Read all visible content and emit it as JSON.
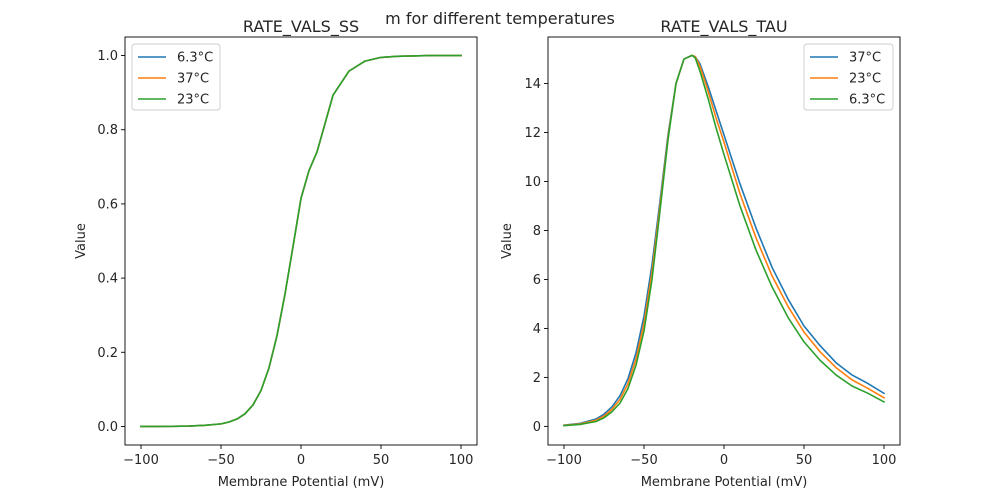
{
  "figure": {
    "suptitle": "m for different temperatures"
  },
  "chart_data": [
    {
      "type": "line",
      "title": "RATE_VALS_SS",
      "xlabel": "Membrane Potential (mV)",
      "ylabel": "Value",
      "xlim": [
        -110,
        110
      ],
      "ylim": [
        -0.05,
        1.05
      ],
      "xticks": [
        -100,
        -50,
        0,
        50,
        100
      ],
      "xtick_labels": [
        "−100",
        "−50",
        "0",
        "50",
        "100"
      ],
      "yticks": [
        0.0,
        0.2,
        0.4,
        0.6,
        0.8,
        1.0
      ],
      "ytick_labels": [
        "0.0",
        "0.2",
        "0.4",
        "0.6",
        "0.8",
        "1.0"
      ],
      "grid": false,
      "legend_position": "upper-left",
      "x": [
        -100,
        -90,
        -80,
        -70,
        -60,
        -50,
        -45,
        -40,
        -35,
        -30,
        -25,
        -20,
        -15,
        -10,
        -5,
        0,
        5,
        10,
        20,
        30,
        40,
        50,
        60,
        70,
        80,
        90,
        100
      ],
      "series": [
        {
          "name": "6.3°C",
          "color": "#1f77b4",
          "values": [
            0.0,
            0.0,
            0.0005,
            0.001,
            0.003,
            0.007,
            0.012,
            0.02,
            0.034,
            0.058,
            0.097,
            0.158,
            0.245,
            0.357,
            0.485,
            0.615,
            0.69,
            0.74,
            0.893,
            0.958,
            0.985,
            0.995,
            0.998,
            0.999,
            1.0,
            1.0,
            1.0
          ]
        },
        {
          "name": "37°C",
          "color": "#ff7f0e",
          "values": [
            0.0,
            0.0,
            0.0005,
            0.001,
            0.003,
            0.007,
            0.012,
            0.02,
            0.034,
            0.058,
            0.097,
            0.158,
            0.245,
            0.357,
            0.485,
            0.615,
            0.69,
            0.74,
            0.893,
            0.958,
            0.985,
            0.995,
            0.998,
            0.999,
            1.0,
            1.0,
            1.0
          ]
        },
        {
          "name": "23°C",
          "color": "#2ca02c",
          "values": [
            0.0,
            0.0,
            0.0005,
            0.001,
            0.003,
            0.007,
            0.012,
            0.02,
            0.034,
            0.058,
            0.097,
            0.158,
            0.245,
            0.357,
            0.485,
            0.615,
            0.69,
            0.74,
            0.893,
            0.958,
            0.985,
            0.995,
            0.998,
            0.999,
            1.0,
            1.0,
            1.0
          ]
        }
      ]
    },
    {
      "type": "line",
      "title": "RATE_VALS_TAU",
      "xlabel": "Membrane Potential (mV)",
      "ylabel": "Value",
      "xlim": [
        -110,
        110
      ],
      "ylim": [
        -0.76,
        15.9
      ],
      "xticks": [
        -100,
        -50,
        0,
        50,
        100
      ],
      "xtick_labels": [
        "−100",
        "−50",
        "0",
        "50",
        "100"
      ],
      "yticks": [
        0,
        2,
        4,
        6,
        8,
        10,
        12,
        14
      ],
      "ytick_labels": [
        "0",
        "2",
        "4",
        "6",
        "8",
        "10",
        "12",
        "14"
      ],
      "grid": false,
      "legend_position": "upper-right",
      "x": [
        -100,
        -90,
        -80,
        -75,
        -70,
        -65,
        -60,
        -55,
        -50,
        -45,
        -40,
        -35,
        -30,
        -25,
        -20,
        -18,
        -15,
        -10,
        -5,
        0,
        10,
        20,
        30,
        40,
        50,
        60,
        70,
        80,
        90,
        100
      ],
      "series": [
        {
          "name": "37°C",
          "color": "#1f77b4",
          "values": [
            0.05,
            0.12,
            0.3,
            0.5,
            0.8,
            1.25,
            1.95,
            3.0,
            4.5,
            6.6,
            9.2,
            11.9,
            14.0,
            15.0,
            15.15,
            15.1,
            14.8,
            13.9,
            12.9,
            11.9,
            9.9,
            8.1,
            6.5,
            5.2,
            4.1,
            3.3,
            2.6,
            2.1,
            1.75,
            1.35
          ]
        },
        {
          "name": "23°C",
          "color": "#ff7f0e",
          "values": [
            0.04,
            0.1,
            0.25,
            0.42,
            0.7,
            1.1,
            1.75,
            2.75,
            4.2,
            6.3,
            9.0,
            11.8,
            14.0,
            15.0,
            15.15,
            15.1,
            14.7,
            13.7,
            12.6,
            11.6,
            9.5,
            7.7,
            6.15,
            4.9,
            3.85,
            3.05,
            2.4,
            1.9,
            1.55,
            1.17
          ]
        },
        {
          "name": "6.3°C",
          "color": "#2ca02c",
          "values": [
            0.03,
            0.08,
            0.2,
            0.35,
            0.6,
            0.95,
            1.55,
            2.5,
            3.9,
            6.0,
            8.8,
            11.7,
            14.0,
            15.0,
            15.15,
            15.05,
            14.5,
            13.4,
            12.2,
            11.1,
            9.0,
            7.2,
            5.7,
            4.45,
            3.45,
            2.7,
            2.1,
            1.65,
            1.35,
            1.0
          ]
        }
      ]
    }
  ]
}
